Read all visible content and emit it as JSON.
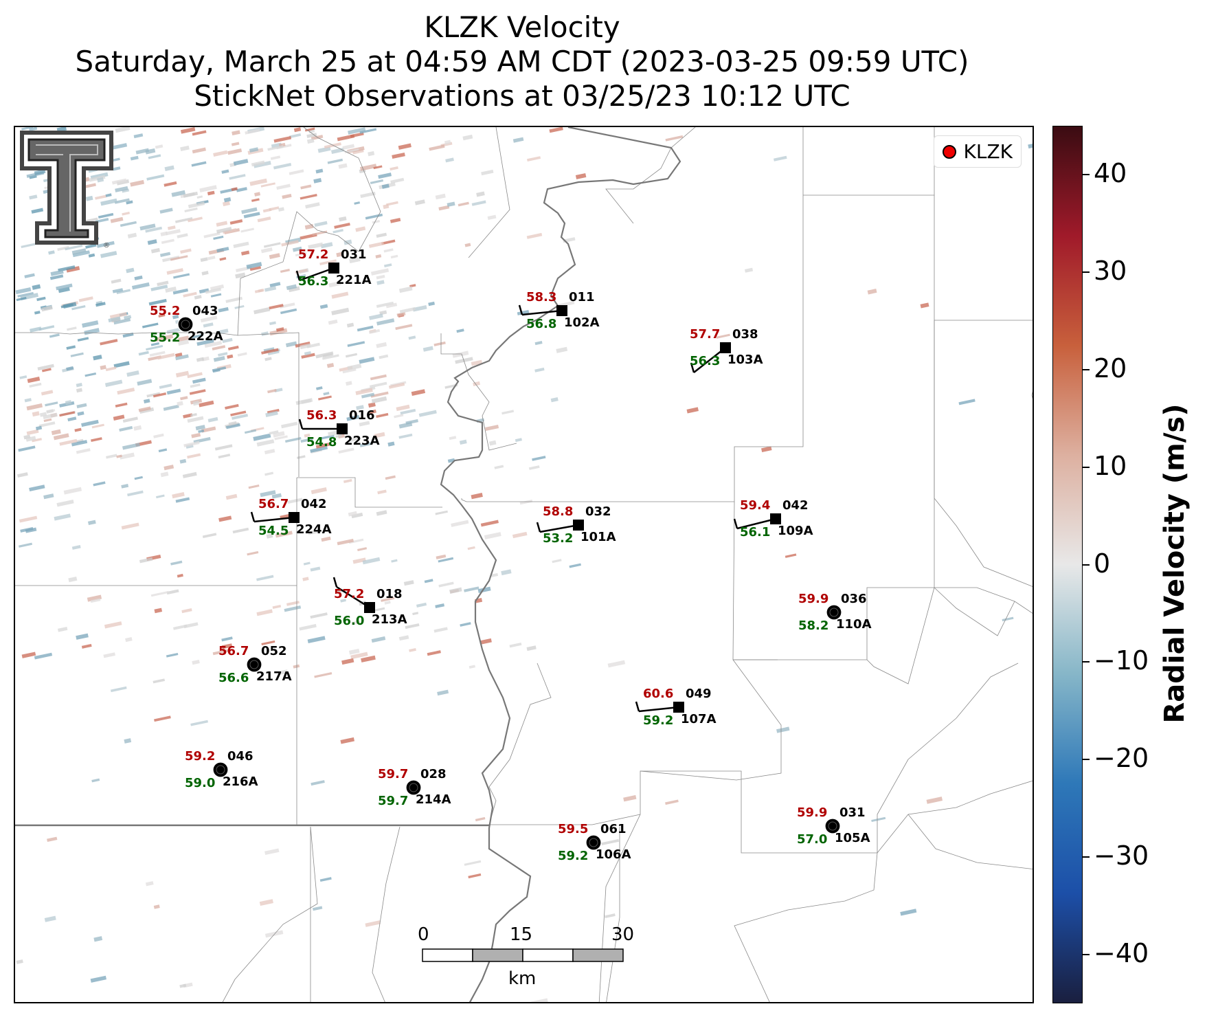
{
  "title": {
    "line1": "KLZK Velocity",
    "line2": "Saturday, March 25 at 04:59 AM CDT (2023-03-25 09:59 UTC)",
    "line3": "StickNet Observations at 03/25/23 10:12 UTC"
  },
  "legend": {
    "label": "KLZK",
    "marker_color": "#ee1111"
  },
  "colorbar": {
    "label": "Radial Velocity (m/s)",
    "min": -45,
    "max": 45,
    "ticks": [
      "40",
      "30",
      "20",
      "10",
      "0",
      "−10",
      "−20",
      "−30",
      "−40"
    ],
    "colors": [
      "#1a1f3f",
      "#1c4fa8",
      "#2e78b8",
      "#86b6c8",
      "#e8e8e8",
      "#ddb0a0",
      "#c8603c",
      "#a01a2a",
      "#3a0c12"
    ]
  },
  "scalebar": {
    "labels": [
      "0",
      "15",
      "30"
    ],
    "unit": "km"
  },
  "icons": {
    "logo": "texas-tech-double-t-logo"
  },
  "stations": [
    {
      "id": "221A",
      "temp": "57.2",
      "dew": "56.3",
      "dir": "031",
      "type": "square"
    },
    {
      "id": "222A",
      "temp": "55.2",
      "dew": "55.2",
      "dir": "043",
      "type": "circle"
    },
    {
      "id": "102A",
      "temp": "58.3",
      "dew": "56.8",
      "dir": "011",
      "type": "square"
    },
    {
      "id": "103A",
      "temp": "57.7",
      "dew": "56.3",
      "dir": "038",
      "type": "square"
    },
    {
      "id": "223A",
      "temp": "56.3",
      "dew": "54.8",
      "dir": "016",
      "type": "square"
    },
    {
      "id": "224A",
      "temp": "56.7",
      "dew": "54.5",
      "dir": "042",
      "type": "square"
    },
    {
      "id": "101A",
      "temp": "58.8",
      "dew": "53.2",
      "dir": "032",
      "type": "square"
    },
    {
      "id": "109A",
      "temp": "59.4",
      "dew": "56.1",
      "dir": "042",
      "type": "square"
    },
    {
      "id": "213A",
      "temp": "57.2",
      "dew": "56.0",
      "dir": "018",
      "type": "square"
    },
    {
      "id": "110A",
      "temp": "59.9",
      "dew": "58.2",
      "dir": "036",
      "type": "circle"
    },
    {
      "id": "217A",
      "temp": "56.7",
      "dew": "56.6",
      "dir": "052",
      "type": "circle"
    },
    {
      "id": "107A",
      "temp": "60.6",
      "dew": "59.2",
      "dir": "049",
      "type": "square"
    },
    {
      "id": "216A",
      "temp": "59.2",
      "dew": "59.0",
      "dir": "046",
      "type": "circle"
    },
    {
      "id": "214A",
      "temp": "59.7",
      "dew": "59.7",
      "dir": "028",
      "type": "circle"
    },
    {
      "id": "106A",
      "temp": "59.5",
      "dew": "59.2",
      "dir": "061",
      "type": "circle"
    },
    {
      "id": "105A",
      "temp": "59.9",
      "dew": "57.0",
      "dir": "031",
      "type": "circle"
    }
  ]
}
